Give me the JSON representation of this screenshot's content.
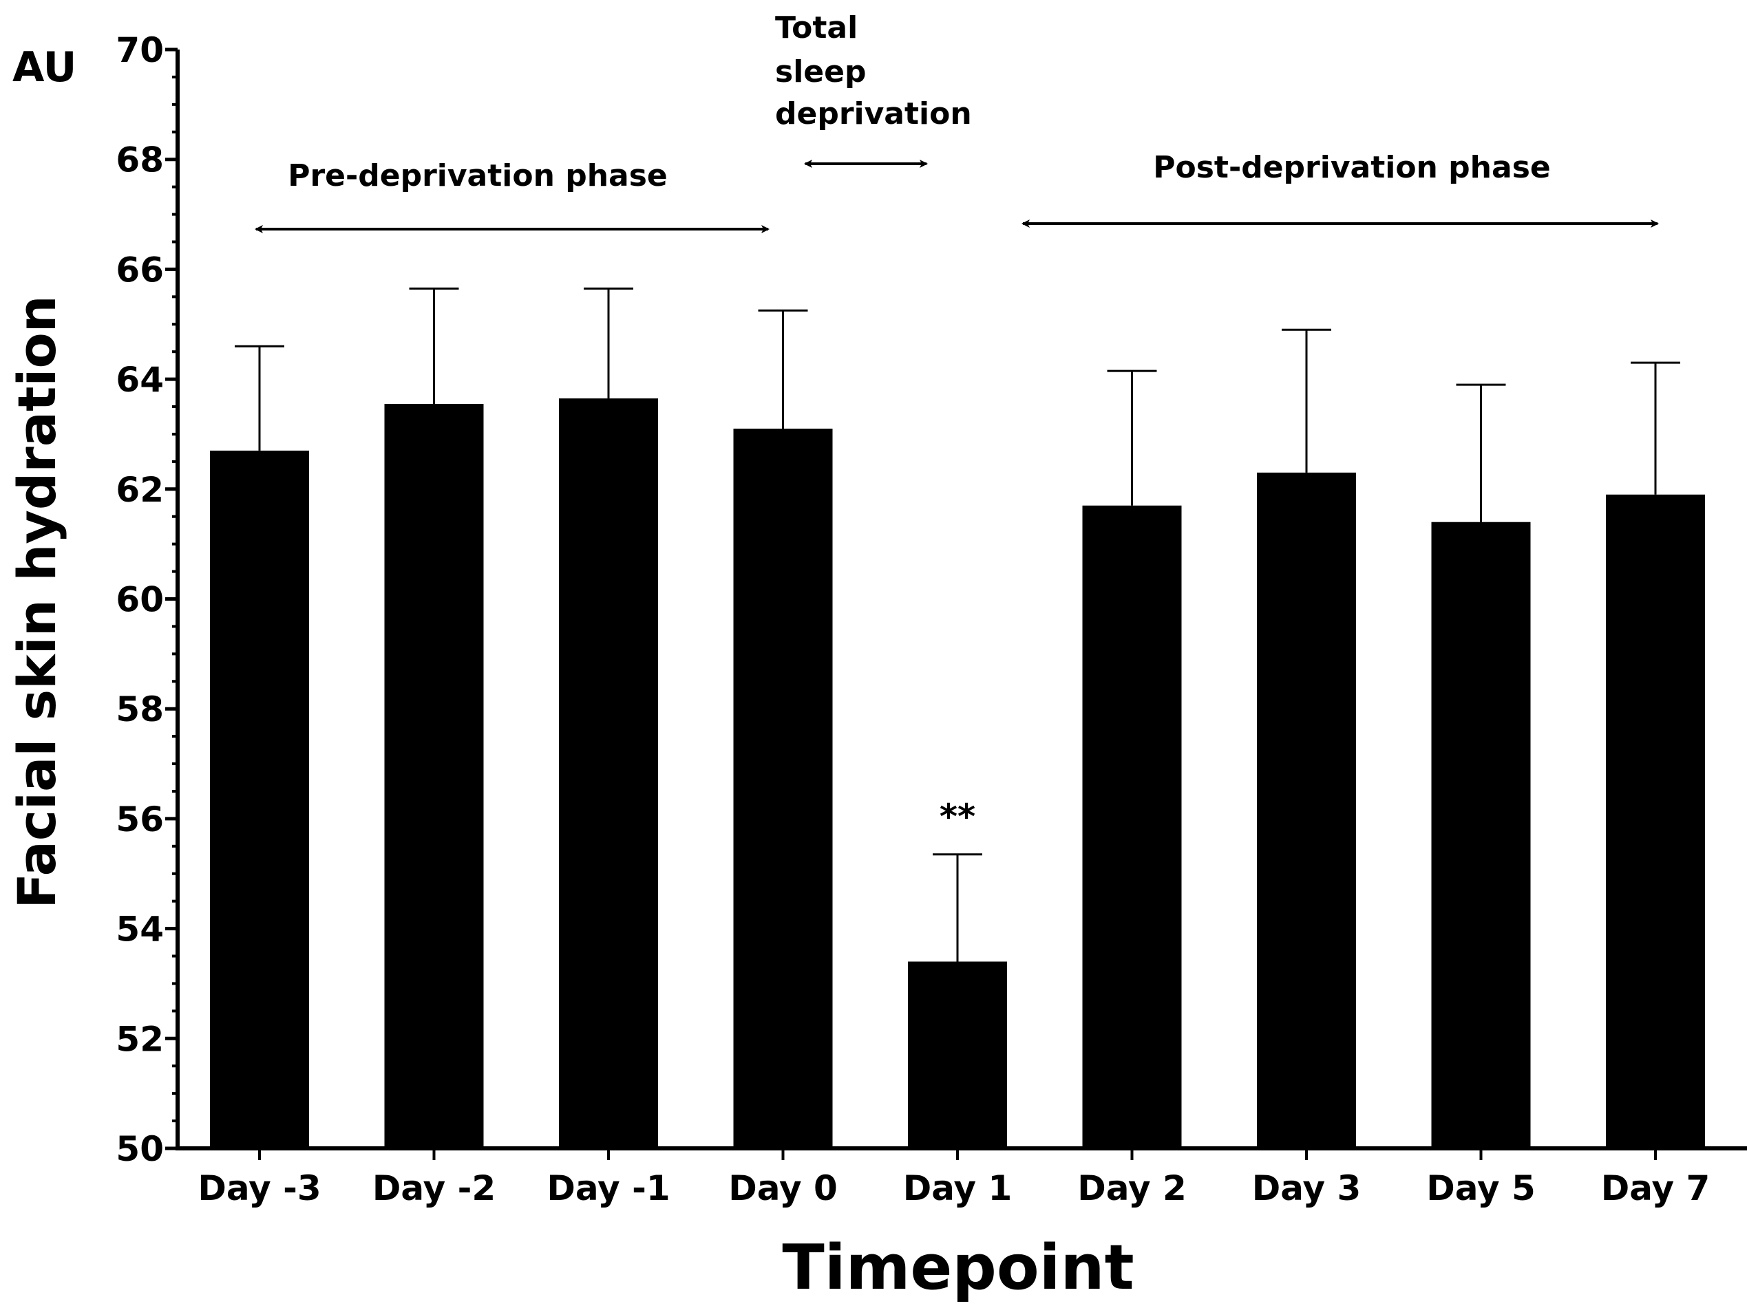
{
  "chart_data": {
    "type": "bar",
    "title": "",
    "xlabel": "Timepoint",
    "ylabel": "Facial skin hydration",
    "unit_label": "AU",
    "ylim": [
      50,
      70
    ],
    "yticks": [
      {
        "value": 50,
        "label": "50"
      },
      {
        "value": 52,
        "label": "52"
      },
      {
        "value": 54,
        "label": "54"
      },
      {
        "value": 56,
        "label": "56"
      },
      {
        "value": 58,
        "label": "58"
      },
      {
        "value": 60,
        "label": "60"
      },
      {
        "value": 62,
        "label": "62"
      },
      {
        "value": 64,
        "label": "64"
      },
      {
        "value": 66,
        "label": "66"
      },
      {
        "value": 68,
        "label": "68"
      },
      {
        "value": 70,
        "label": "70"
      }
    ],
    "categories": [
      "Day -3",
      "Day -2",
      "Day -1",
      "Day 0",
      "Day 1",
      "Day 2",
      "Day 3",
      "Day 5",
      "Day 7"
    ],
    "values": [
      62.7,
      63.55,
      63.65,
      63.1,
      53.4,
      61.7,
      62.3,
      61.4,
      61.9
    ],
    "error_upper": [
      64.6,
      65.65,
      65.65,
      65.25,
      55.35,
      64.15,
      64.9,
      63.9,
      64.3
    ],
    "bar_color": "#000000",
    "annotations": {
      "significance": {
        "category": "Day 1",
        "text": "**"
      },
      "pre_phase": {
        "text": "Pre-deprivation phase",
        "from": "Day -3",
        "to": "Day 0"
      },
      "deprivation": {
        "lines": [
          "Total",
          "sleep",
          "deprivation"
        ]
      },
      "post_phase": {
        "text": "Post-deprivation phase",
        "from": "Day 2",
        "to": "Day 7"
      }
    }
  }
}
